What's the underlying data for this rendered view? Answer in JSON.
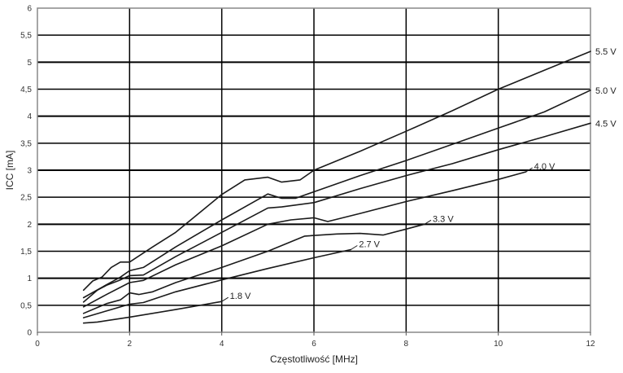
{
  "chart_data": {
    "type": "line",
    "xlabel": "Częstotliwość [MHz]",
    "ylabel": "ICC [mA]",
    "xlim": [
      0,
      12
    ],
    "ylim": [
      0,
      6
    ],
    "x_ticks": [
      "0",
      "2",
      "4",
      "6",
      "8",
      "10",
      "12"
    ],
    "y_ticks": [
      "0",
      "0,5",
      "1",
      "1,5",
      "2",
      "2,5",
      "3",
      "3,5",
      "4",
      "4,5",
      "5",
      "5,5",
      "6"
    ],
    "grid": true,
    "colors": {
      "line": "#1a1a1a",
      "grid": "#000000",
      "frame": "#888888"
    },
    "series": [
      {
        "name": "1.8 V",
        "x": [
          1,
          1.3,
          2,
          3,
          4
        ],
        "y": [
          0.17,
          0.19,
          0.28,
          0.42,
          0.57
        ]
      },
      {
        "name": "2.7 V",
        "x": [
          1,
          2,
          2.3,
          3,
          4,
          5,
          6,
          6.8
        ],
        "y": [
          0.27,
          0.52,
          0.55,
          0.75,
          0.97,
          1.18,
          1.38,
          1.53
        ]
      },
      {
        "name": "3.3 V",
        "x": [
          1,
          1.5,
          1.8,
          2,
          2.2,
          2.5,
          3,
          4,
          5,
          5.8,
          6.5,
          7,
          7.5,
          8,
          8.4
        ],
        "y": [
          0.35,
          0.53,
          0.6,
          0.73,
          0.7,
          0.75,
          0.92,
          1.2,
          1.5,
          1.78,
          1.82,
          1.83,
          1.8,
          1.91,
          2.0
        ]
      },
      {
        "name": "4.0 V",
        "x": [
          1,
          1.5,
          2,
          2.3,
          3,
          4,
          5,
          5.5,
          6,
          6.3,
          7,
          8,
          9,
          10,
          10.6
        ],
        "y": [
          0.47,
          0.7,
          0.92,
          0.96,
          1.25,
          1.6,
          2.0,
          2.08,
          2.12,
          2.05,
          2.2,
          2.42,
          2.62,
          2.83,
          2.97
        ]
      },
      {
        "name": "4.5 V",
        "x": [
          1,
          1.3,
          1.5,
          1.8,
          2,
          2.3,
          3,
          4,
          5,
          5.3,
          6,
          7,
          8,
          9,
          10,
          11,
          12
        ],
        "y": [
          0.56,
          0.78,
          0.87,
          0.97,
          1.05,
          1.06,
          1.4,
          1.85,
          2.3,
          2.32,
          2.4,
          2.66,
          2.9,
          3.12,
          3.38,
          3.62,
          3.87
        ]
      },
      {
        "name": "5.0 V",
        "x": [
          1,
          1.5,
          1.8,
          2,
          2.3,
          3,
          4,
          5,
          5.3,
          5.6,
          6,
          7,
          8,
          9,
          10,
          11,
          12
        ],
        "y": [
          0.64,
          0.88,
          1.02,
          1.14,
          1.2,
          1.58,
          2.08,
          2.56,
          2.48,
          2.48,
          2.6,
          2.9,
          3.18,
          3.48,
          3.78,
          4.08,
          4.48
        ]
      },
      {
        "name": "5.5 V",
        "x": [
          1,
          1.2,
          1.4,
          1.6,
          1.8,
          2,
          2.5,
          3,
          4,
          4.5,
          5,
          5.3,
          5.7,
          6,
          7,
          8,
          9,
          10,
          11,
          12
        ],
        "y": [
          0.78,
          0.95,
          1.02,
          1.2,
          1.3,
          1.3,
          1.58,
          1.85,
          2.55,
          2.82,
          2.87,
          2.78,
          2.82,
          3.0,
          3.35,
          3.72,
          4.1,
          4.5,
          4.85,
          5.2
        ]
      }
    ]
  }
}
